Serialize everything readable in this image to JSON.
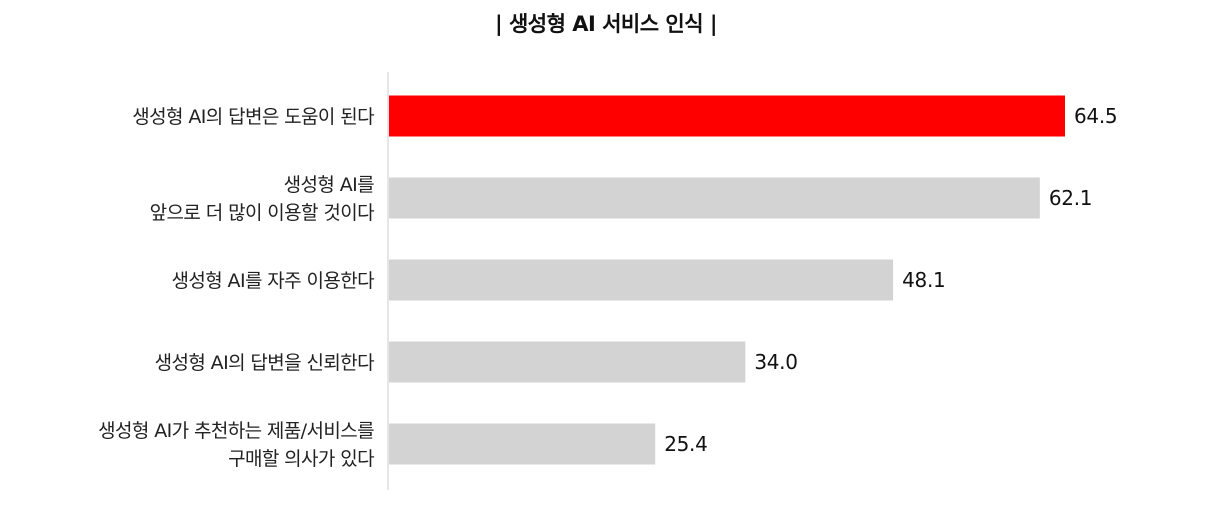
{
  "chart_data": {
    "type": "bar",
    "orientation": "horizontal",
    "title": "| 생성형 AI 서비스 인식 |",
    "categories": [
      [
        "생성형 AI의 답변은 도움이 된다"
      ],
      [
        "생성형 AI를",
        "앞으로 더 많이 이용할 것이다"
      ],
      [
        "생성형 AI를 자주 이용한다"
      ],
      [
        "생성형 AI의 답변을 신뢰한다"
      ],
      [
        "생성형 AI가 추천하는 제품/서비스를",
        "구매할 의사가 있다"
      ]
    ],
    "values": [
      64.5,
      62.1,
      48.1,
      34.0,
      25.4
    ],
    "value_labels": [
      "64.5",
      "62.1",
      "48.1",
      "34.0",
      "25.4"
    ],
    "xlim": [
      0,
      100
    ],
    "xlabel": "",
    "ylabel": "",
    "grid": false,
    "legend": "none",
    "highlight_index": 0,
    "colors": {
      "highlight": "#ff0000",
      "default": "#d3d3d3",
      "axis": "#cccccc"
    }
  }
}
